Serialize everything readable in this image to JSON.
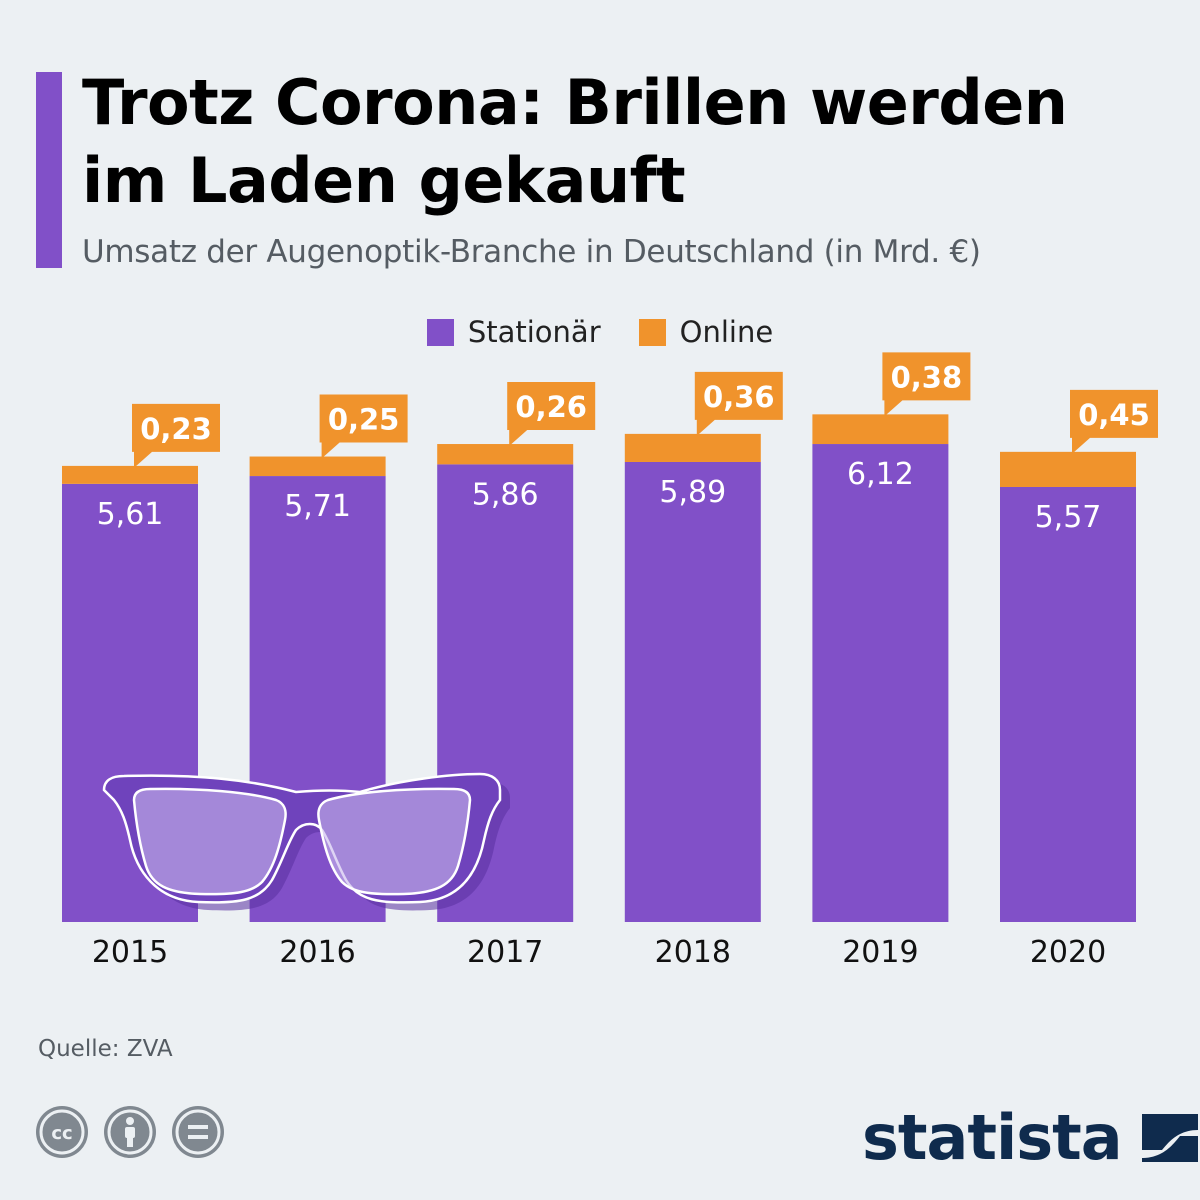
{
  "header": {
    "title_line1": "Trotz Corona: Brillen werden",
    "title_line2": "im Laden gekauft",
    "subtitle": "Umsatz der Augenoptik-Branche in Deutschland (in Mrd. €)"
  },
  "legend": {
    "items": [
      {
        "label": "Stationär",
        "color": "#8150c8"
      },
      {
        "label": "Online",
        "color": "#f0932c"
      }
    ]
  },
  "chart_data": {
    "type": "bar",
    "stacked": true,
    "categories": [
      "2015",
      "2016",
      "2017",
      "2018",
      "2019",
      "2020"
    ],
    "series": [
      {
        "name": "Stationär",
        "color": "#8150c8",
        "values": [
          5.61,
          5.71,
          5.86,
          5.89,
          6.12,
          5.57
        ],
        "labels": [
          "5,61",
          "5,71",
          "5,86",
          "5,89",
          "6,12",
          "5,57"
        ]
      },
      {
        "name": "Online",
        "color": "#f0932c",
        "values": [
          0.23,
          0.25,
          0.26,
          0.36,
          0.38,
          0.45
        ],
        "labels": [
          "0,23",
          "0,25",
          "0,26",
          "0,36",
          "0,38",
          "0,45"
        ]
      }
    ],
    "title": "Trotz Corona: Brillen werden im Laden gekauft",
    "subtitle": "Umsatz der Augenoptik-Branche in Deutschland (in Mrd. €)",
    "ylim": [
      0,
      6.5
    ],
    "grid": false,
    "legend_position": "top-center",
    "decoration": "sunglasses-illustration"
  },
  "footer": {
    "source": "Quelle: ZVA",
    "brand": "statista",
    "license_icons": [
      "cc-icon",
      "attribution-icon",
      "no-derivatives-icon"
    ]
  }
}
